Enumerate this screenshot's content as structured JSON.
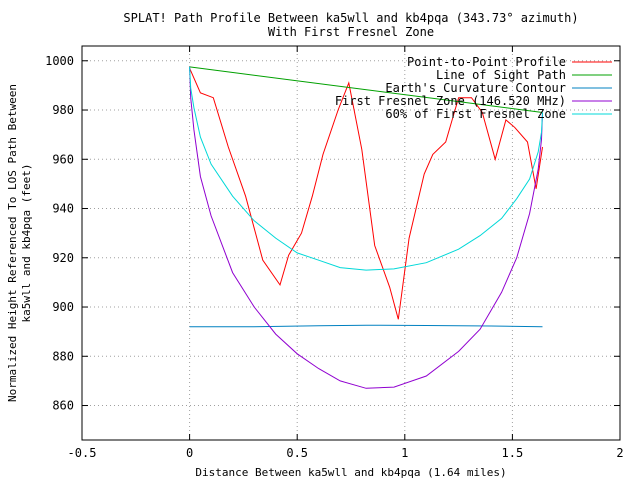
{
  "chart_data": {
    "type": "line",
    "title": [
      "SPLAT! Path Profile Between ka5wll and kb4pqa (343.73° azimuth)",
      "With First Fresnel Zone"
    ],
    "xlabel": "Distance Between ka5wll and kb4pqa (1.64 miles)",
    "ylabel": [
      "Normalized Height Referenced To LOS Path Between",
      "ka5wll and kb4pqa (feet)"
    ],
    "xlim": [
      -0.5,
      2
    ],
    "ylim": [
      846,
      1006
    ],
    "xticks": [
      -0.5,
      0,
      0.5,
      1,
      1.5,
      2
    ],
    "xtick_labels": [
      "-0.5",
      "0",
      "0.5",
      "1",
      "1.5",
      "2"
    ],
    "yticks": [
      860,
      880,
      900,
      920,
      940,
      960,
      980,
      1000
    ],
    "ytick_labels": [
      "860",
      "880",
      "900",
      "920",
      "940",
      "960",
      "980",
      "1000"
    ],
    "grid": true,
    "legend_position": "top-right",
    "series": [
      {
        "name": "Point-to-Point Profile",
        "color": "#ff0000",
        "x": [
          0,
          0.05,
          0.11,
          0.18,
          0.26,
          0.34,
          0.42,
          0.46,
          0.52,
          0.57,
          0.62,
          0.69,
          0.74,
          0.8,
          0.86,
          0.93,
          0.97,
          1.02,
          1.09,
          1.13,
          1.19,
          1.25,
          1.31,
          1.36,
          1.42,
          1.47,
          1.51,
          1.57,
          1.61,
          1.64
        ],
        "y": [
          997,
          987,
          985,
          965,
          945,
          919,
          909,
          921,
          930,
          945,
          962,
          980,
          991,
          964,
          925,
          908,
          895,
          928,
          954,
          962,
          967,
          985,
          985,
          979,
          960,
          976,
          973,
          967,
          948,
          965
        ]
      },
      {
        "name": "Line of Sight Path",
        "color": "#00a000",
        "x": [
          0,
          1.64
        ],
        "y": [
          997.5,
          979
        ]
      },
      {
        "name": "Earth's Curvature Contour",
        "color": "#0080c0",
        "x": [
          0,
          0.3,
          0.6,
          0.82,
          1.1,
          1.4,
          1.64
        ],
        "y": [
          892,
          892,
          892.4,
          892.6,
          892.5,
          892.3,
          892
        ]
      },
      {
        "name": "First Fresnel Zone (146.520 MHz)",
        "color": "#9000d0",
        "x": [
          0,
          0.005,
          0.02,
          0.05,
          0.1,
          0.2,
          0.3,
          0.4,
          0.5,
          0.6,
          0.7,
          0.82,
          0.95,
          1.1,
          1.25,
          1.35,
          1.45,
          1.52,
          1.58,
          1.62,
          1.635,
          1.64
        ],
        "y": [
          997.5,
          985,
          972,
          953,
          937,
          914,
          900,
          889,
          881,
          875,
          870,
          867,
          867.5,
          872,
          882,
          891,
          906,
          920,
          938,
          956,
          968,
          979
        ]
      },
      {
        "name": "60% of First Fresnel Zone",
        "color": "#00d8d8",
        "x": [
          0,
          0.005,
          0.02,
          0.05,
          0.1,
          0.2,
          0.3,
          0.4,
          0.5,
          0.6,
          0.7,
          0.82,
          0.95,
          1.1,
          1.25,
          1.35,
          1.45,
          1.52,
          1.58,
          1.62,
          1.635,
          1.64
        ],
        "y": [
          997.5,
          989,
          981,
          969,
          958,
          945,
          935,
          928,
          922,
          919,
          916,
          915,
          915.5,
          918,
          923.5,
          929,
          936,
          944,
          952,
          963,
          971,
          979
        ]
      }
    ]
  }
}
